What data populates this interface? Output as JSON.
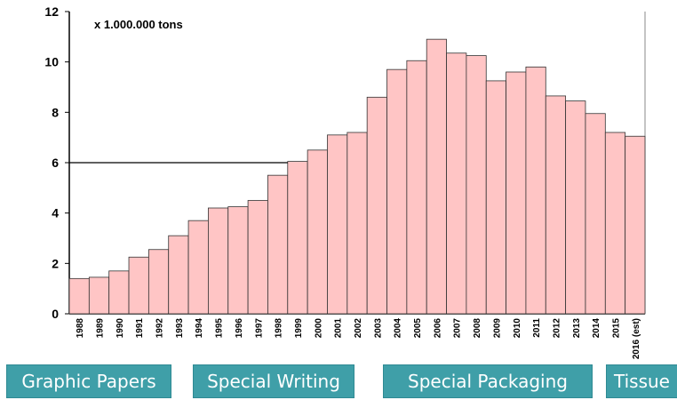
{
  "chart_data": {
    "type": "bar",
    "unit_label": "x 1.000.000 tons",
    "categories": [
      "1988",
      "1989",
      "1990",
      "1991",
      "1992",
      "1993",
      "1994",
      "1995",
      "1996",
      "1997",
      "1998",
      "1999",
      "2000",
      "2001",
      "2002",
      "2003",
      "2004",
      "2005",
      "2006",
      "2007",
      "2008",
      "2009",
      "2010",
      "2011",
      "2012",
      "2013",
      "2014",
      "2015",
      "2016 (est)"
    ],
    "values": [
      1.4,
      1.45,
      1.7,
      2.25,
      2.55,
      3.1,
      3.7,
      4.2,
      4.25,
      4.5,
      5.5,
      6.05,
      6.5,
      7.1,
      7.2,
      8.6,
      9.7,
      10.05,
      10.9,
      10.35,
      10.25,
      9.25,
      9.6,
      9.8,
      8.65,
      8.45,
      7.95,
      7.2,
      7.05
    ],
    "ylim": [
      0,
      12
    ],
    "yticks": [
      "0",
      "2",
      "4",
      "6",
      "8",
      "10",
      "12"
    ],
    "reference_line": 6,
    "bar_color": "#ffc5c5"
  },
  "categories_bar": [
    {
      "label": "Graphic Papers"
    },
    {
      "label": "Special Writing"
    },
    {
      "label": "Special Packaging"
    },
    {
      "label": "Tissue"
    }
  ],
  "colors": {
    "button_bg": "#3f9fa8",
    "button_text": "#ffffff"
  }
}
